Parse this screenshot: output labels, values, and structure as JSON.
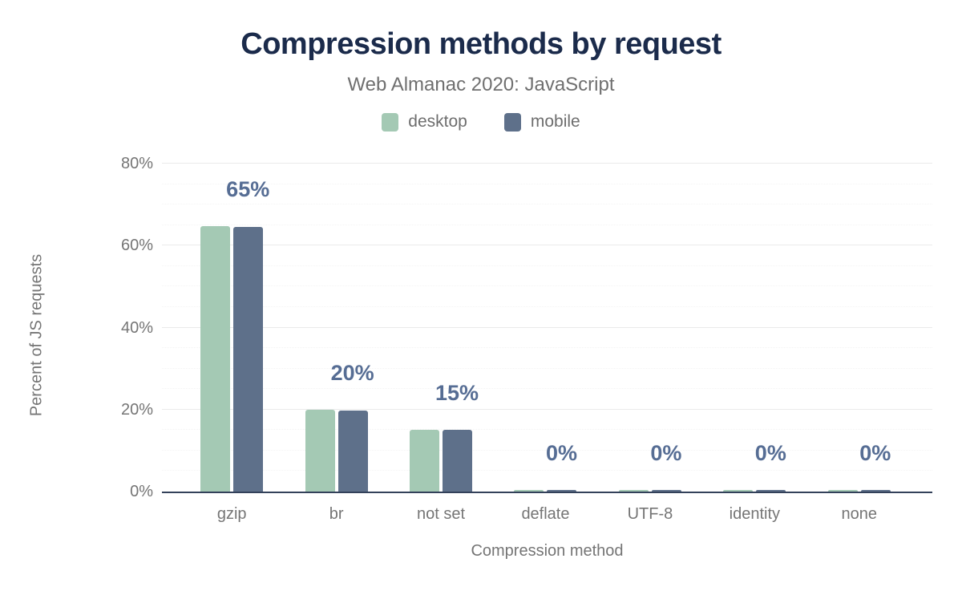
{
  "chart_data": {
    "type": "bar",
    "title": "Compression methods by request",
    "subtitle": "Web Almanac 2020: JavaScript",
    "xlabel": "Compression method",
    "ylabel": "Percent of JS requests",
    "categories": [
      "gzip",
      "br",
      "not set",
      "deflate",
      "UTF-8",
      "identity",
      "none"
    ],
    "series": [
      {
        "name": "desktop",
        "color": "#a4c9b4",
        "values": [
          64.8,
          19.9,
          15.0,
          0.4,
          0.2,
          0.2,
          0.2
        ]
      },
      {
        "name": "mobile",
        "color": "#5e708a",
        "values": [
          64.6,
          19.8,
          15.1,
          0.4,
          0.2,
          0.2,
          0.2
        ]
      }
    ],
    "value_labels": [
      "65%",
      "20%",
      "15%",
      "0%",
      "0%",
      "0%",
      "0%"
    ],
    "y_ticks": [
      {
        "label": "0%",
        "value": 0
      },
      {
        "label": "20%",
        "value": 20
      },
      {
        "label": "40%",
        "value": 40
      },
      {
        "label": "60%",
        "value": 60
      },
      {
        "label": "80%",
        "value": 80
      }
    ],
    "ylim": [
      0,
      80
    ],
    "grid": {
      "major_step": 20,
      "minor_step": 5,
      "major_color": "#eaeaea",
      "minor_color": "#f4f4f4",
      "major_style": "solid",
      "minor_style": "dotted"
    },
    "legend_position": "top",
    "colors": {
      "title": "#1b2b4b",
      "subtitle": "#6f6f6f",
      "axis_labels": "#757575",
      "value_label": "#566d94",
      "axis_line": "#33415a",
      "background": "#ffffff"
    }
  }
}
